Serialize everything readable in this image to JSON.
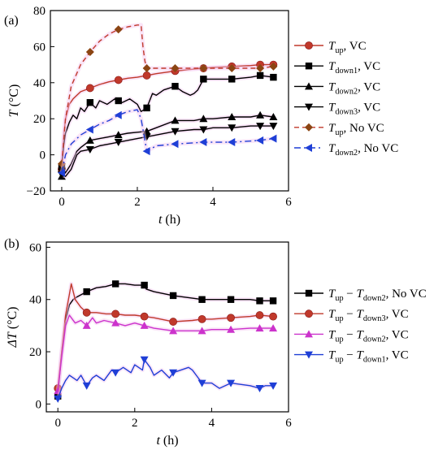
{
  "chart_data": [
    {
      "type": "line",
      "panel_label": "(a)",
      "xlabel": "t (h)",
      "ylabel": "T (°C)",
      "xlim": [
        -0.3,
        6
      ],
      "ylim": [
        -20,
        80
      ],
      "xticks": [
        0,
        2,
        4,
        6
      ],
      "yticks": [
        -20,
        0,
        20,
        40,
        60,
        80
      ],
      "grid": false,
      "legend_position": "right",
      "series": [
        {
          "name": "T_up, VC",
          "legend_parts": [
            {
              "t": "T",
              "i": true
            },
            {
              "t": "up",
              "sub": true
            },
            {
              "t": ", VC"
            }
          ],
          "color": "#c0392b",
          "marker": "circle",
          "line": "solid",
          "x": [
            0,
            0.05,
            0.1,
            0.2,
            0.3,
            0.5,
            0.75,
            1.0,
            1.25,
            1.5,
            1.75,
            2.0,
            2.25,
            2.5,
            3.0,
            3.5,
            3.75,
            4.0,
            4.5,
            5.0,
            5.25,
            5.6
          ],
          "y": [
            -8,
            10,
            20,
            28,
            31,
            35,
            37,
            39,
            40.5,
            41.5,
            42.5,
            43,
            44,
            45,
            46.5,
            47.5,
            48,
            48.5,
            49,
            49.5,
            50,
            50
          ],
          "marker_x": [
            0,
            0.75,
            1.5,
            2.25,
            3.0,
            3.75,
            4.5,
            5.25,
            5.6
          ],
          "marker_y": [
            -8,
            37,
            41.5,
            44,
            46.5,
            48,
            49,
            50,
            50
          ]
        },
        {
          "name": "T_down1, VC",
          "legend_parts": [
            {
              "t": "T",
              "i": true
            },
            {
              "t": "down1",
              "sub": true
            },
            {
              "t": ", VC"
            }
          ],
          "color": "#000000",
          "marker": "square",
          "line": "solid",
          "x": [
            0,
            0.05,
            0.1,
            0.2,
            0.3,
            0.4,
            0.5,
            0.6,
            0.75,
            0.9,
            1.0,
            1.2,
            1.4,
            1.5,
            1.6,
            1.8,
            2.0,
            2.1,
            2.25,
            2.4,
            2.5,
            2.7,
            3.0,
            3.2,
            3.4,
            3.5,
            3.6,
            3.75,
            4.0,
            4.5,
            5.0,
            5.25,
            5.6
          ],
          "y": [
            -7,
            5,
            12,
            18,
            22,
            20,
            26,
            24,
            29,
            26,
            30,
            28,
            31,
            30,
            29,
            31,
            28,
            24,
            26,
            34,
            33,
            36,
            38,
            35,
            33,
            34,
            36,
            42,
            42,
            42,
            43,
            44,
            43
          ],
          "marker_x": [
            0,
            0.75,
            1.5,
            2.25,
            3.0,
            3.75,
            4.5,
            5.25,
            5.6
          ],
          "marker_y": [
            -7,
            29,
            30,
            26,
            38,
            42,
            42,
            44,
            43
          ]
        },
        {
          "name": "T_down2, VC",
          "legend_parts": [
            {
              "t": "T",
              "i": true
            },
            {
              "t": "down2",
              "sub": true
            },
            {
              "t": ", VC"
            }
          ],
          "color": "#000000",
          "marker": "triangle-up",
          "line": "solid",
          "x": [
            0,
            0.1,
            0.25,
            0.4,
            0.5,
            0.75,
            1.0,
            1.25,
            1.5,
            1.75,
            2.0,
            2.25,
            2.5,
            3.0,
            3.5,
            3.75,
            4.0,
            4.5,
            5.0,
            5.25,
            5.6
          ],
          "y": [
            -12,
            -10,
            -5,
            2,
            4,
            8,
            9,
            10,
            11,
            12,
            12.5,
            13,
            15,
            19,
            19,
            20,
            20,
            21,
            21,
            22,
            21
          ],
          "marker_x": [
            0,
            0.75,
            1.5,
            2.25,
            3.0,
            3.75,
            4.5,
            5.25,
            5.6
          ],
          "marker_y": [
            -12,
            8,
            11,
            13,
            19,
            20,
            21,
            22,
            21
          ]
        },
        {
          "name": "T_down3, VC",
          "legend_parts": [
            {
              "t": "T",
              "i": true
            },
            {
              "t": "down3",
              "sub": true
            },
            {
              "t": ", VC"
            }
          ],
          "color": "#000000",
          "marker": "triangle-down",
          "line": "solid",
          "x": [
            0,
            0.1,
            0.25,
            0.4,
            0.5,
            0.75,
            1.0,
            1.25,
            1.5,
            1.75,
            2.0,
            2.25,
            2.5,
            3.0,
            3.5,
            3.75,
            4.0,
            4.5,
            5.0,
            5.25,
            5.6
          ],
          "y": [
            -11,
            -12,
            -8,
            0,
            2,
            3,
            5,
            6,
            7,
            8,
            9,
            10,
            11,
            13,
            14,
            14,
            15,
            15,
            16,
            16,
            16
          ],
          "marker_x": [
            0,
            0.75,
            1.5,
            2.25,
            3.0,
            3.75,
            4.5,
            5.25,
            5.6
          ],
          "marker_y": [
            -11,
            3,
            7,
            10,
            13,
            14,
            15,
            16,
            16
          ]
        },
        {
          "name": "T_up, No VC",
          "legend_parts": [
            {
              "t": "T",
              "i": true
            },
            {
              "t": "up",
              "sub": true
            },
            {
              "t": ", No VC"
            }
          ],
          "color": "#c0392b",
          "marker": "diamond",
          "marker_color": "#8b4513",
          "line": "dashed",
          "x": [
            0,
            0.1,
            0.25,
            0.5,
            0.75,
            1.0,
            1.25,
            1.5,
            1.75,
            2.0,
            2.1,
            2.15,
            2.2,
            2.25,
            2.5,
            3.0,
            3.75,
            4.5,
            5.25,
            5.6
          ],
          "y": [
            -5,
            20,
            38,
            50,
            57,
            63,
            67,
            69.5,
            71,
            72,
            72,
            60,
            52,
            48,
            48,
            48,
            48,
            48,
            48,
            49
          ],
          "marker_x": [
            0,
            0.75,
            1.5,
            2.25,
            3.0,
            3.75,
            4.5,
            5.25,
            5.6
          ],
          "marker_y": [
            -5,
            57,
            69.5,
            48,
            48,
            48,
            48,
            48,
            49
          ]
        },
        {
          "name": "T_down2, No VC",
          "legend_parts": [
            {
              "t": "T",
              "i": true
            },
            {
              "t": "down2",
              "sub": true
            },
            {
              "t": ", No VC"
            }
          ],
          "color": "#1f3fd6",
          "marker": "triangle-left",
          "line": "dashdot",
          "x": [
            0,
            0.1,
            0.25,
            0.5,
            0.75,
            1.0,
            1.25,
            1.5,
            1.75,
            2.0,
            2.1,
            2.2,
            2.25,
            2.5,
            3.0,
            3.75,
            4.5,
            5.25,
            5.6
          ],
          "y": [
            -10,
            0,
            6,
            11,
            14,
            17,
            19,
            22,
            24,
            25,
            20,
            8,
            2,
            5,
            6,
            7,
            7,
            8,
            9
          ],
          "marker_x": [
            0,
            0.75,
            1.5,
            2.25,
            3.0,
            3.75,
            4.5,
            5.25,
            5.6
          ],
          "marker_y": [
            -10,
            14,
            22,
            2,
            6,
            7,
            7,
            8,
            9
          ]
        }
      ]
    },
    {
      "type": "line",
      "panel_label": "(b)",
      "xlabel": "t (h)",
      "ylabel": "ΔT (°C)",
      "xlim": [
        -0.3,
        6
      ],
      "ylim": [
        -3,
        62
      ],
      "xticks": [
        0,
        2,
        4,
        6
      ],
      "yticks": [
        0,
        20,
        40,
        60
      ],
      "grid": false,
      "legend_position": "right",
      "series": [
        {
          "name": "T_up − T_down2, No VC",
          "legend_parts": [
            {
              "t": "T",
              "i": true
            },
            {
              "t": "up",
              "sub": true
            },
            {
              "t": " − "
            },
            {
              "t": "T",
              "i": true
            },
            {
              "t": "down2",
              "sub": true
            },
            {
              "t": ", No VC"
            }
          ],
          "color": "#000000",
          "marker": "square",
          "line": "solid",
          "x": [
            0,
            0.1,
            0.2,
            0.3,
            0.4,
            0.5,
            0.75,
            1.0,
            1.25,
            1.5,
            1.75,
            2.0,
            2.25,
            2.3,
            2.5,
            3.0,
            3.5,
            3.75,
            4.0,
            4.5,
            5.0,
            5.25,
            5.6
          ],
          "y": [
            3,
            20,
            32,
            38,
            40,
            41,
            43,
            44.5,
            45,
            46,
            46,
            45.5,
            45.5,
            44,
            43,
            41.5,
            40.5,
            40,
            40,
            40,
            40,
            39.5,
            39.5
          ],
          "marker_x": [
            0,
            0.75,
            1.5,
            2.25,
            3.0,
            3.75,
            4.5,
            5.25,
            5.6
          ],
          "marker_y": [
            3,
            43,
            46,
            45.5,
            41.5,
            40,
            40,
            39.5,
            39.5
          ]
        },
        {
          "name": "T_up − T_down3, VC",
          "legend_parts": [
            {
              "t": "T",
              "i": true
            },
            {
              "t": "up",
              "sub": true
            },
            {
              "t": " − "
            },
            {
              "t": "T",
              "i": true
            },
            {
              "t": "down3",
              "sub": true
            },
            {
              "t": ", VC"
            }
          ],
          "color": "#c0392b",
          "marker": "circle",
          "line": "solid",
          "x": [
            0,
            0.1,
            0.2,
            0.3,
            0.35,
            0.45,
            0.6,
            0.75,
            1.0,
            1.25,
            1.5,
            1.75,
            2.0,
            2.25,
            2.5,
            3.0,
            3.5,
            3.75,
            4.0,
            4.5,
            5.0,
            5.25,
            5.6
          ],
          "y": [
            6,
            20,
            34,
            42,
            46,
            40,
            37,
            35,
            35,
            34.5,
            34.5,
            34,
            34,
            33.5,
            33,
            31.5,
            32,
            32.5,
            32.5,
            33,
            33.5,
            34,
            33.5
          ],
          "marker_x": [
            0,
            0.75,
            1.5,
            2.25,
            3.0,
            3.75,
            4.5,
            5.25,
            5.6
          ],
          "marker_y": [
            6,
            35,
            34.5,
            33.5,
            31.5,
            32.5,
            33,
            34,
            33.5
          ]
        },
        {
          "name": "T_up − T_down2, VC",
          "legend_parts": [
            {
              "t": "T",
              "i": true
            },
            {
              "t": "up",
              "sub": true
            },
            {
              "t": " − "
            },
            {
              "t": "T",
              "i": true
            },
            {
              "t": "down2",
              "sub": true
            },
            {
              "t": ", VC"
            }
          ],
          "color": "#cc33cc",
          "marker": "triangle-up",
          "line": "solid",
          "x": [
            0,
            0.1,
            0.2,
            0.3,
            0.35,
            0.45,
            0.6,
            0.75,
            0.9,
            1.0,
            1.2,
            1.5,
            1.75,
            2.0,
            2.25,
            2.5,
            3.0,
            3.5,
            3.75,
            4.0,
            4.5,
            5.0,
            5.25,
            5.6
          ],
          "y": [
            5,
            18,
            30,
            34,
            33,
            31,
            32,
            30,
            33,
            31,
            32,
            31,
            30,
            31,
            30,
            29,
            28,
            28,
            28,
            28.5,
            28.5,
            29,
            29,
            29
          ],
          "marker_x": [
            0,
            0.75,
            1.5,
            2.25,
            3.0,
            3.75,
            4.5,
            5.25,
            5.6
          ],
          "marker_y": [
            5,
            30,
            31,
            30,
            28,
            28,
            28.5,
            29,
            29
          ]
        },
        {
          "name": "T_up − T_down1, VC",
          "legend_parts": [
            {
              "t": "T",
              "i": true
            },
            {
              "t": "up",
              "sub": true
            },
            {
              "t": " − "
            },
            {
              "t": "T",
              "i": true
            },
            {
              "t": "down1",
              "sub": true
            },
            {
              "t": ", VC"
            }
          ],
          "color": "#1f3fd6",
          "marker": "triangle-down",
          "line": "solid",
          "x": [
            0,
            0.1,
            0.2,
            0.3,
            0.4,
            0.5,
            0.6,
            0.75,
            0.9,
            1.0,
            1.2,
            1.4,
            1.5,
            1.7,
            1.9,
            2.0,
            2.2,
            2.25,
            2.4,
            2.5,
            2.7,
            2.9,
            3.0,
            3.2,
            3.4,
            3.5,
            3.6,
            3.75,
            4.0,
            4.2,
            4.5,
            5.0,
            5.25,
            5.4,
            5.6
          ],
          "y": [
            2,
            6,
            9,
            11,
            10,
            9,
            11,
            7,
            10,
            11,
            9,
            13,
            12,
            14,
            12,
            15,
            13,
            17,
            14,
            11,
            13,
            10,
            12,
            13,
            14,
            13,
            11,
            8,
            8,
            6,
            8,
            7,
            6,
            7,
            7
          ],
          "marker_x": [
            0,
            0.75,
            1.5,
            2.25,
            3.0,
            3.75,
            4.5,
            5.25,
            5.6
          ],
          "marker_y": [
            2,
            7,
            12,
            17,
            12,
            8,
            8,
            6,
            7
          ]
        }
      ]
    }
  ]
}
